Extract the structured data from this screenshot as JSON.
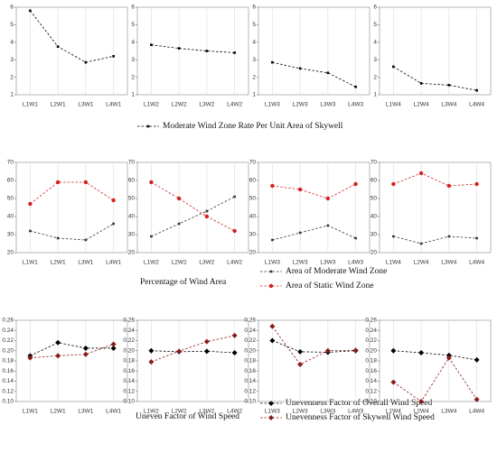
{
  "chart_data": [
    {
      "type": "line",
      "categories": [
        "L1W1",
        "L2W1",
        "L3W1",
        "L4W1"
      ],
      "ylim": [
        1,
        6
      ],
      "yticks": [
        1,
        2,
        3,
        4,
        5,
        6
      ],
      "grid": true,
      "series": [
        {
          "name": "Moderate Wind Zone Rate Per Unit Area of Skywell",
          "color": "#000000",
          "marker": "square",
          "values": [
            5.8,
            3.75,
            2.85,
            3.2
          ]
        }
      ]
    },
    {
      "type": "line",
      "categories": [
        "L1W2",
        "L2W2",
        "L3W2",
        "L4W2"
      ],
      "ylim": [
        1,
        6
      ],
      "yticks": [
        1,
        2,
        3,
        4,
        5,
        6
      ],
      "grid": true,
      "series": [
        {
          "color": "#000000",
          "marker": "square",
          "values": [
            3.85,
            3.65,
            3.5,
            3.4
          ]
        }
      ]
    },
    {
      "type": "line",
      "categories": [
        "L1W3",
        "L2W3",
        "L3W3",
        "L4W3"
      ],
      "ylim": [
        1,
        6
      ],
      "yticks": [
        1,
        2,
        3,
        4,
        5,
        6
      ],
      "grid": true,
      "series": [
        {
          "color": "#000000",
          "marker": "square",
          "values": [
            2.85,
            2.5,
            2.25,
            1.45
          ]
        }
      ]
    },
    {
      "type": "line",
      "categories": [
        "L1W4",
        "L2W4",
        "L3W4",
        "L4W4"
      ],
      "ylim": [
        1,
        6
      ],
      "yticks": [
        1,
        2,
        3,
        4,
        5,
        6
      ],
      "grid": true,
      "series": [
        {
          "color": "#000000",
          "marker": "square",
          "values": [
            2.6,
            1.65,
            1.55,
            1.25
          ]
        }
      ]
    },
    {
      "type": "line",
      "title": "Percentage of Wind Area",
      "categories": [
        "L1W1",
        "L2W1",
        "L3W1",
        "L4W1"
      ],
      "ylim": [
        20,
        70
      ],
      "yticks": [
        20,
        30,
        40,
        50,
        60,
        70
      ],
      "grid": true,
      "series": [
        {
          "name": "Area of Moderate Wind Zone",
          "color": "#333333",
          "marker": "square",
          "values": [
            32,
            28,
            27,
            36
          ]
        },
        {
          "name": "Area of Static Wind  Zone",
          "color": "#d42020",
          "marker": "circle",
          "values": [
            47,
            59,
            59,
            49
          ]
        }
      ]
    },
    {
      "type": "line",
      "categories": [
        "L1W2",
        "L2W2",
        "L3W2",
        "L4W2"
      ],
      "ylim": [
        20,
        70
      ],
      "yticks": [
        20,
        30,
        40,
        50,
        60,
        70
      ],
      "grid": true,
      "series": [
        {
          "color": "#333333",
          "marker": "square",
          "values": [
            29,
            36,
            43,
            51
          ]
        },
        {
          "color": "#d42020",
          "marker": "circle",
          "values": [
            59,
            50,
            40,
            32
          ]
        }
      ]
    },
    {
      "type": "line",
      "categories": [
        "L1W3",
        "L2W3",
        "L3W3",
        "L4W3"
      ],
      "ylim": [
        20,
        70
      ],
      "yticks": [
        20,
        30,
        40,
        50,
        60,
        70
      ],
      "grid": true,
      "series": [
        {
          "color": "#333333",
          "marker": "square",
          "values": [
            27,
            31,
            35,
            28
          ]
        },
        {
          "color": "#d42020",
          "marker": "circle",
          "values": [
            57,
            55,
            50,
            58
          ]
        }
      ]
    },
    {
      "type": "line",
      "categories": [
        "L1W4",
        "L2W4",
        "L3W4",
        "L4W4"
      ],
      "ylim": [
        20,
        70
      ],
      "yticks": [
        20,
        30,
        40,
        50,
        60,
        70
      ],
      "grid": true,
      "series": [
        {
          "color": "#333333",
          "marker": "square",
          "values": [
            29,
            25,
            29,
            28
          ]
        },
        {
          "color": "#d42020",
          "marker": "circle",
          "values": [
            58,
            64,
            57,
            58
          ]
        }
      ]
    },
    {
      "type": "line",
      "title": "Uneven Factor of Wind Speed",
      "categories": [
        "L1W1",
        "L2W1",
        "L3W1",
        "L4W1"
      ],
      "ylim": [
        0.1,
        0.26
      ],
      "yticks": [
        {
          "value": 0.1,
          "label": "0.10"
        },
        0.12,
        0.14,
        0.16,
        0.18,
        {
          "value": 0.2,
          "label": "0.20"
        },
        0.22,
        0.24,
        0.26
      ],
      "grid": true,
      "series": [
        {
          "name": "Unevenness Factor of Overall Wind Speed",
          "color": "#000000",
          "marker": "diamond",
          "values": [
            0.19,
            0.216,
            0.205,
            0.205
          ]
        },
        {
          "name": "Unevenness Factor of Skywell Wind Speed",
          "color": "#8b1a1a",
          "marker": "diamond",
          "values": [
            0.186,
            0.19,
            0.193,
            0.213
          ]
        }
      ]
    },
    {
      "type": "line",
      "categories": [
        "L1W2",
        "L2W2",
        "L3W2",
        "L4W2"
      ],
      "ylim": [
        0.1,
        0.26
      ],
      "yticks": [
        {
          "value": 0.1,
          "label": "0.10"
        },
        0.12,
        0.14,
        0.16,
        0.18,
        {
          "value": 0.2,
          "label": "0.20"
        },
        0.22,
        0.24,
        0.26
      ],
      "grid": true,
      "series": [
        {
          "color": "#000000",
          "marker": "diamond",
          "values": [
            0.2,
            0.198,
            0.199,
            0.196
          ]
        },
        {
          "color": "#8b1a1a",
          "marker": "diamond",
          "values": [
            0.178,
            0.199,
            0.218,
            0.23
          ]
        }
      ]
    },
    {
      "type": "line",
      "categories": [
        "L1W3",
        "L2W3",
        "L3W3",
        "L4W3"
      ],
      "ylim": [
        0.1,
        0.26
      ],
      "yticks": [
        {
          "value": 0.1,
          "label": "0.10"
        },
        0.12,
        0.14,
        0.16,
        0.18,
        {
          "value": 0.2,
          "label": "0.20"
        },
        0.22,
        0.24,
        0.26
      ],
      "grid": true,
      "series": [
        {
          "color": "#000000",
          "marker": "diamond",
          "values": [
            0.22,
            0.198,
            0.197,
            0.2
          ]
        },
        {
          "color": "#8b1a1a",
          "marker": "diamond",
          "values": [
            0.248,
            0.173,
            0.2,
            0.201
          ]
        }
      ]
    },
    {
      "type": "line",
      "categories": [
        "L1W4",
        "L2W4",
        "L3W4",
        "L4W4"
      ],
      "ylim": [
        0.1,
        0.26
      ],
      "yticks": [
        {
          "value": 0.1,
          "label": "0.10"
        },
        0.12,
        0.14,
        0.16,
        0.18,
        {
          "value": 0.2,
          "label": "0.20"
        },
        0.22,
        0.24,
        0.26
      ],
      "grid": true,
      "series": [
        {
          "color": "#000000",
          "marker": "diamond",
          "values": [
            0.2,
            0.196,
            0.191,
            0.182
          ]
        },
        {
          "color": "#8b1a1a",
          "marker": "diamond",
          "values": [
            0.138,
            0.1,
            0.186,
            0.104
          ]
        }
      ]
    }
  ]
}
